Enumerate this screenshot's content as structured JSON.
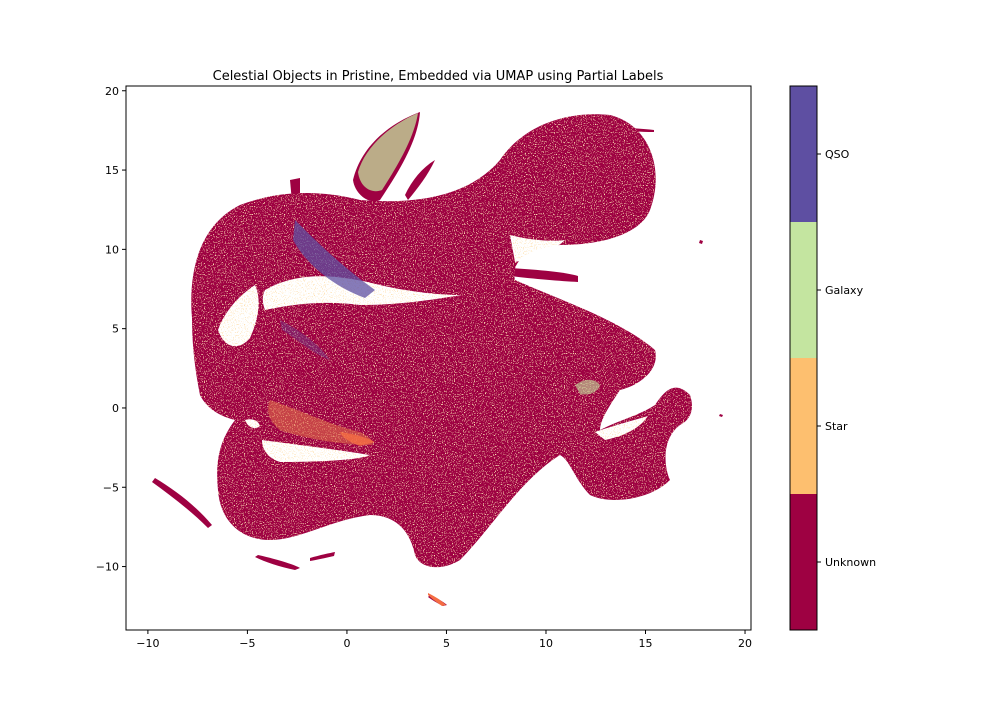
{
  "chart_data": {
    "type": "scatter",
    "title": "Celestial Objects in Pristine, Embedded via UMAP using Partial Labels",
    "xlabel": "",
    "ylabel": "",
    "xlim": [
      -11.1,
      20.3
    ],
    "ylim": [
      -14.0,
      20.3
    ],
    "xticks": [
      -10,
      -5,
      0,
      5,
      10,
      15,
      20
    ],
    "yticks": [
      20,
      15,
      10,
      5,
      0,
      -5,
      -10
    ],
    "xtick_labels": [
      "−10",
      "−5",
      "0",
      "5",
      "10",
      "15",
      "20"
    ],
    "ytick_labels": [
      "20",
      "15",
      "10",
      "5",
      "0",
      "−5",
      "−10"
    ],
    "grid": false,
    "colorbar": {
      "labels": [
        "QSO",
        "Galaxy",
        "Star",
        "Unknown"
      ],
      "colors": [
        "#5e4fa2",
        "#c4e5a0",
        "#fdbf6f",
        "#9e0142"
      ]
    },
    "series": [
      {
        "class": "Unknown",
        "color": "#9e0142"
      },
      {
        "class": "Star",
        "color": "#fdbf6f"
      },
      {
        "class": "Galaxy",
        "color": "#c4e5a0"
      },
      {
        "class": "QSO",
        "color": "#5e4fa2"
      }
    ]
  }
}
